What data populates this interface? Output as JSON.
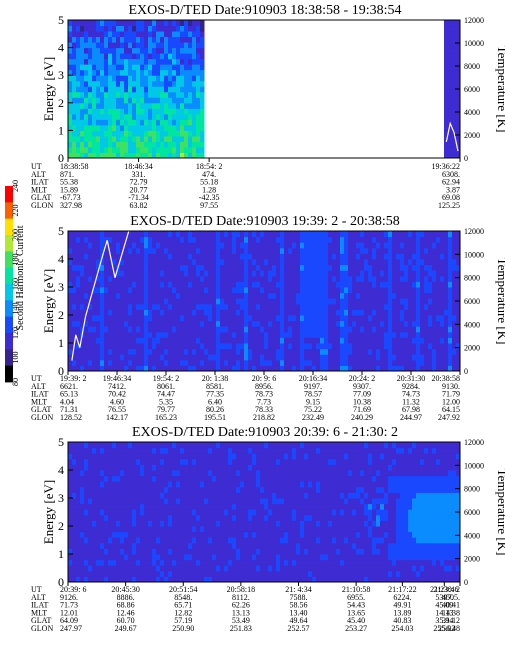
{
  "colors": {
    "background": "#3c23b4",
    "palette": [
      "#000000",
      "#37238c",
      "#3f2bd2",
      "#1a48ff",
      "#0a8cff",
      "#00c8e6",
      "#00e6a0",
      "#40e060",
      "#b0e838",
      "#ffe000",
      "#ff6000",
      "#ff0000"
    ]
  },
  "colorbar": {
    "label": "Second Harmonic Current",
    "ticks": [
      "80",
      "100",
      "120",
      "140",
      "160",
      "180",
      "200",
      "220",
      "240"
    ]
  },
  "panels": [
    {
      "title": "EXOS-D/TED   Date:910903   18:38:58 - 19:38:54",
      "ylabel_left": "Energy [eV]",
      "ylabel_right": "Temperature [K]",
      "eticks": [
        "0",
        "1",
        "2",
        "3",
        "4",
        "5"
      ],
      "tticks": [
        "0",
        "2000",
        "4000",
        "6000",
        "8000",
        "10000",
        "12000"
      ],
      "row_labels": [
        "UT",
        "ALT",
        "ILAT",
        "MLT",
        "GLAT",
        "GLON"
      ],
      "columns": [
        {
          "frac": 0.0,
          "UT": "18:38:58",
          "ALT": "871.",
          "ILAT": "55.38",
          "MLT": "15.89",
          "GLAT": "-67.73",
          "GLON": "327.98"
        },
        {
          "frac": 0.18,
          "UT": "18:46:34",
          "ALT": "331.",
          "ILAT": "72.79",
          "MLT": "20.77",
          "GLAT": "-71.34",
          "GLON": "63.82"
        },
        {
          "frac": 0.36,
          "UT": "18:54: 2",
          "ALT": "474.",
          "ILAT": "55.18",
          "MLT": "1.28",
          "GLAT": "-42.35",
          "GLON": "97.55"
        },
        {
          "frac": 1.0,
          "UT": "19:36:22",
          "ALT": "6308.",
          "ILAT": "62.94",
          "MLT": "3.87",
          "GLAT": "69.08",
          "GLON": "125.25"
        }
      ],
      "data_ranges": [
        [
          0.0,
          0.35
        ],
        [
          0.961,
          1.0
        ]
      ],
      "level_max": 11,
      "temperature_k": [
        [
          0.965,
          1400
        ],
        [
          0.975,
          3000
        ],
        [
          0.985,
          2200
        ],
        [
          0.995,
          600
        ]
      ]
    },
    {
      "title": "EXOS-D/TED   Date:910903   19:39: 2 - 20:38:58",
      "ylabel_left": "Energy [eV]",
      "ylabel_right": "Temperature [K]",
      "eticks": [
        "0",
        "1",
        "2",
        "3",
        "4",
        "5"
      ],
      "tticks": [
        "0",
        "2000",
        "4000",
        "6000",
        "8000",
        "10000",
        "12000"
      ],
      "row_labels": [
        "UT",
        "ALT",
        "ILAT",
        "MLT",
        "GLAT",
        "GLON"
      ],
      "columns": [
        {
          "frac": 0.0,
          "UT": "19:39: 2",
          "ALT": "6621.",
          "ILAT": "65.13",
          "MLT": "4.04",
          "GLAT": "71.31",
          "GLON": "128.52"
        },
        {
          "frac": 0.125,
          "UT": "19:46:34",
          "ALT": "7412.",
          "ILAT": "70.42",
          "MLT": "4.60",
          "GLAT": "76.55",
          "GLON": "142.17"
        },
        {
          "frac": 0.25,
          "UT": "19:54: 2",
          "ALT": "8061.",
          "ILAT": "74.47",
          "MLT": "5.35",
          "GLAT": "79.77",
          "GLON": "165.23"
        },
        {
          "frac": 0.375,
          "UT": "20: 1:38",
          "ALT": "8581.",
          "ILAT": "77.35",
          "MLT": "6.40",
          "GLAT": "80.26",
          "GLON": "195.51"
        },
        {
          "frac": 0.5,
          "UT": "20: 9: 6",
          "ALT": "8956.",
          "ILAT": "78.73",
          "MLT": "7.73",
          "GLAT": "78.33",
          "GLON": "218.82"
        },
        {
          "frac": 0.625,
          "UT": "20:16:34",
          "ALT": "9197.",
          "ILAT": "78.57",
          "MLT": "9.15",
          "GLAT": "75.22",
          "GLON": "232.49"
        },
        {
          "frac": 0.75,
          "UT": "20:24: 2",
          "ALT": "9307.",
          "ILAT": "77.09",
          "MLT": "10.38",
          "GLAT": "71.69",
          "GLON": "240.29"
        },
        {
          "frac": 0.875,
          "UT": "20:31:30",
          "ALT": "9284.",
          "ILAT": "74.73",
          "MLT": "11.32",
          "GLAT": "67.98",
          "GLON": "244.97"
        },
        {
          "frac": 1.0,
          "UT": "20:38:58",
          "ALT": "9130.",
          "ILAT": "71.79",
          "MLT": "12.00",
          "GLAT": "64.15",
          "GLON": "247.92"
        }
      ],
      "data_ranges": [
        [
          0.0,
          1.0
        ]
      ],
      "level_max": 5,
      "temperature_k": [
        [
          0.01,
          900
        ],
        [
          0.02,
          3100
        ],
        [
          0.03,
          2000
        ],
        [
          0.045,
          4700
        ],
        [
          0.09,
          10100
        ],
        [
          0.1,
          11200
        ],
        [
          0.12,
          8000
        ],
        [
          0.155,
          12000
        ]
      ]
    },
    {
      "title": "EXOS-D/TED   Date:910903   20:39: 6 - 21:30: 2",
      "ylabel_left": "Energy [eV]",
      "ylabel_right": "Temperature [K]",
      "eticks": [
        "0",
        "1",
        "2",
        "3",
        "4",
        "5"
      ],
      "tticks": [
        "0",
        "2000",
        "4000",
        "6000",
        "8000",
        "10000",
        "12000"
      ],
      "row_labels": [
        "UT",
        "ALT",
        "ILAT",
        "MLT",
        "GLAT",
        "GLON"
      ],
      "columns": [
        {
          "frac": 0.0,
          "UT": "20:39: 6",
          "ALT": "9126.",
          "ILAT": "71.73",
          "MLT": "12.01",
          "GLAT": "64.09",
          "GLON": "247.97"
        },
        {
          "frac": 0.147,
          "UT": "20:45:30",
          "ALT": "8886.",
          "ILAT": "68.86",
          "MLT": "12.46",
          "GLAT": "60.70",
          "GLON": "249.67"
        },
        {
          "frac": 0.294,
          "UT": "20:51:54",
          "ALT": "8548.",
          "ILAT": "65.71",
          "MLT": "12.82",
          "GLAT": "57.19",
          "GLON": "250.90"
        },
        {
          "frac": 0.441,
          "UT": "20:58:18",
          "ALT": "8112.",
          "ILAT": "62.26",
          "MLT": "13.13",
          "GLAT": "53.49",
          "GLON": "251.83"
        },
        {
          "frac": 0.588,
          "UT": "21: 4:34",
          "ALT": "7588.",
          "ILAT": "58.56",
          "MLT": "13.40",
          "GLAT": "49.64",
          "GLON": "252.57"
        },
        {
          "frac": 0.735,
          "UT": "21:10:58",
          "ALT": "6955.",
          "ILAT": "54.43",
          "MLT": "13.65",
          "GLAT": "45.40",
          "GLON": "253.27"
        },
        {
          "frac": 0.853,
          "UT": "21:17:22",
          "ALT": "6224.",
          "ILAT": "49.91",
          "MLT": "13.89",
          "GLAT": "40.83",
          "GLON": "254.03"
        },
        {
          "frac": 0.96,
          "UT": "21:23:46",
          "ALT": "5397.",
          "ILAT": "45.09",
          "MLT": "14.13",
          "GLAT": "35.94",
          "GLON": "255.02"
        },
        {
          "frac": 1.0,
          "UT": "21:30: 2",
          "ALT": "4505.",
          "ILAT": "40.41",
          "MLT": "14.38",
          "GLAT": "31.12",
          "GLON": "256.48"
        }
      ],
      "data_ranges": [
        [
          0.0,
          1.0
        ]
      ],
      "level_max": 4,
      "temperature_k": []
    }
  ],
  "chart_data": [
    {
      "type": "heatmap",
      "title": "EXOS-D/TED   Date:910903   18:38:58 - 19:38:54",
      "xlabel": "UT",
      "ylabel": "Energy [eV]",
      "y2label": "Temperature [K]",
      "ylim": [
        0,
        5
      ],
      "y2lim": [
        0,
        12000
      ],
      "x_ticks": [
        "18:38:58",
        "18:46:34",
        "18:54: 2",
        "19:36:22"
      ],
      "z_range": [
        80,
        240
      ],
      "data_coverage": [
        "18:38:58 - 18:54:02",
        "19:36:22 - 19:38:54"
      ],
      "temperature_series": [
        {
          "ut": "19:36:40",
          "k": 1400
        },
        {
          "ut": "19:37:10",
          "k": 3000
        },
        {
          "ut": "19:37:40",
          "k": 2200
        },
        {
          "ut": "19:38:10",
          "k": 600
        }
      ]
    },
    {
      "type": "heatmap",
      "title": "EXOS-D/TED   Date:910903   19:39: 2 - 20:38:58",
      "xlabel": "UT",
      "ylabel": "Energy [eV]",
      "y2label": "Temperature [K]",
      "ylim": [
        0,
        5
      ],
      "y2lim": [
        0,
        12000
      ],
      "x_ticks": [
        "19:39: 2",
        "19:46:34",
        "19:54: 2",
        "20: 1:38",
        "20: 9: 6",
        "20:16:34",
        "20:24: 2",
        "20:31:30",
        "20:38:58"
      ],
      "z_range": [
        80,
        240
      ],
      "temperature_series": [
        {
          "ut": "19:39:38",
          "k": 900
        },
        {
          "ut": "19:40:14",
          "k": 3100
        },
        {
          "ut": "19:40:50",
          "k": 2000
        },
        {
          "ut": "19:41:44",
          "k": 4700
        },
        {
          "ut": "19:44:26",
          "k": 10100
        },
        {
          "ut": "19:45:02",
          "k": 11200
        },
        {
          "ut": "19:46:14",
          "k": 8000
        },
        {
          "ut": "19:48:20",
          "k": 12000
        }
      ]
    },
    {
      "type": "heatmap",
      "title": "EXOS-D/TED   Date:910903   20:39: 6 - 21:30: 2",
      "xlabel": "UT",
      "ylabel": "Energy [eV]",
      "y2label": "Temperature [K]",
      "ylim": [
        0,
        5
      ],
      "y2lim": [
        0,
        12000
      ],
      "x_ticks": [
        "20:39: 6",
        "20:45:30",
        "20:51:54",
        "20:58:18",
        "21: 4:34",
        "21:10:58",
        "21:17:22",
        "21:23:46",
        "21:30: 2"
      ],
      "z_range": [
        80,
        240
      ],
      "enhancement": {
        "ut": "21:17:22 - 21:30:02",
        "energy_ev": [
          1,
          3.5
        ]
      }
    }
  ]
}
